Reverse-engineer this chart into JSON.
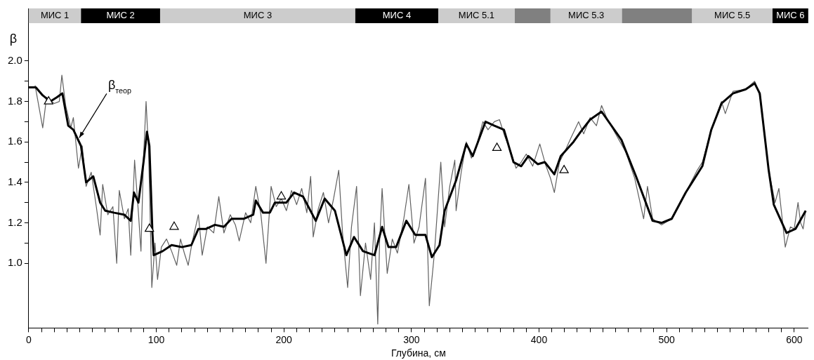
{
  "chart_data": {
    "type": "line",
    "xlabel": "Глубина, см",
    "ylabel": "β",
    "xlim": [
      0,
      611
    ],
    "ylim": [
      0.68,
      2.26
    ],
    "xticks": [
      0,
      {
        "value": 10,
        "label": null
      },
      {
        "value": 20,
        "label": null
      },
      {
        "value": 30,
        "label": null
      },
      {
        "value": 40,
        "label": null
      },
      {
        "value": 50,
        "label": null
      },
      {
        "value": 60,
        "label": null
      },
      {
        "value": 70,
        "label": null
      },
      {
        "value": 80,
        "label": null
      },
      {
        "value": 90,
        "label": null
      },
      100,
      {
        "value": 110,
        "label": null
      },
      {
        "value": 120,
        "label": null
      },
      {
        "value": 130,
        "label": null
      },
      {
        "value": 140,
        "label": null
      },
      {
        "value": 150,
        "label": null
      },
      {
        "value": 160,
        "label": null
      },
      {
        "value": 170,
        "label": null
      },
      {
        "value": 180,
        "label": null
      },
      {
        "value": 190,
        "label": null
      },
      200,
      {
        "value": 210,
        "label": null
      },
      {
        "value": 220,
        "label": null
      },
      {
        "value": 230,
        "label": null
      },
      {
        "value": 240,
        "label": null
      },
      {
        "value": 250,
        "label": null
      },
      {
        "value": 260,
        "label": null
      },
      {
        "value": 270,
        "label": null
      },
      {
        "value": 280,
        "label": null
      },
      {
        "value": 290,
        "label": null
      },
      300,
      {
        "value": 310,
        "label": null
      },
      {
        "value": 320,
        "label": null
      },
      {
        "value": 330,
        "label": null
      },
      {
        "value": 340,
        "label": null
      },
      {
        "value": 350,
        "label": null
      },
      {
        "value": 360,
        "label": null
      },
      {
        "value": 370,
        "label": null
      },
      {
        "value": 380,
        "label": null
      },
      {
        "value": 390,
        "label": null
      },
      400,
      {
        "value": 410,
        "label": null
      },
      {
        "value": 420,
        "label": null
      },
      {
        "value": 430,
        "label": null
      },
      {
        "value": 440,
        "label": null
      },
      {
        "value": 450,
        "label": null
      },
      {
        "value": 460,
        "label": null
      },
      {
        "value": 470,
        "label": null
      },
      {
        "value": 480,
        "label": null
      },
      {
        "value": 490,
        "label": null
      },
      500,
      {
        "value": 510,
        "label": null
      },
      {
        "value": 520,
        "label": null
      },
      {
        "value": 530,
        "label": null
      },
      {
        "value": 540,
        "label": null
      },
      {
        "value": 550,
        "label": null
      },
      {
        "value": 560,
        "label": null
      },
      {
        "value": 570,
        "label": null
      },
      {
        "value": 580,
        "label": null
      },
      {
        "value": 590,
        "label": null
      },
      600
    ],
    "yticks": [
      {
        "value": 1.0,
        "label": "1.0"
      },
      {
        "value": 1.1,
        "label": null
      },
      {
        "value": 1.2,
        "label": "1.2"
      },
      {
        "value": 1.3,
        "label": null
      },
      {
        "value": 1.4,
        "label": "1.4"
      },
      {
        "value": 1.5,
        "label": null
      },
      {
        "value": 1.6,
        "label": "1.6"
      },
      {
        "value": 1.7,
        "label": null
      },
      {
        "value": 1.8,
        "label": "1.8"
      },
      {
        "value": 1.9,
        "label": null
      },
      {
        "value": 2.0,
        "label": "2.0"
      }
    ],
    "grid": false,
    "legend": false,
    "line_style": "solid",
    "series": [
      {
        "type": "line",
        "color": "#606060",
        "marker": "none",
        "x": [
          5,
          11,
          14,
          20,
          24,
          26,
          29,
          33,
          35,
          39,
          42,
          45,
          49,
          53,
          56,
          58,
          62,
          66,
          69,
          71,
          75,
          78,
          80,
          83,
          86,
          88,
          90,
          92,
          94,
          96.5,
          99,
          101,
          104,
          108,
          112,
          116,
          119,
          122,
          125,
          128,
          133,
          136,
          140,
          145,
          149,
          153,
          158,
          162,
          165,
          170,
          174,
          178,
          182,
          186,
          190,
          194,
          198,
          202,
          206,
          210,
          214,
          218,
          221,
          223,
          227,
          231,
          235,
          239,
          243,
          246,
          250,
          253,
          257,
          260,
          264,
          268,
          271,
          273.6,
          275,
          277,
          281,
          285,
          289,
          294,
          298,
          302,
          306,
          311,
          314,
          318,
          323,
          326,
          330,
          334,
          335,
          339,
          343,
          347,
          351,
          356,
          360,
          365,
          369,
          373,
          378,
          382,
          386,
          390,
          395,
          400.6,
          405,
          409,
          412,
          416,
          420,
          425,
          431,
          435,
          440,
          445,
          449,
          453,
          460,
          468,
          475,
          482,
          485,
          489,
          496,
          504,
          515,
          524,
          528,
          535,
          543,
          546,
          552,
          562,
          569,
          573,
          580,
          585,
          588,
          593,
          597,
          600,
          603,
          605,
          607,
          609
        ],
        "values": [
          1.88,
          1.67,
          1.82,
          1.79,
          1.8,
          1.93,
          1.78,
          1.67,
          1.72,
          1.47,
          1.58,
          1.38,
          1.45,
          1.28,
          1.14,
          1.39,
          1.24,
          1.28,
          1.0,
          1.36,
          1.22,
          1.27,
          1.04,
          1.51,
          1.25,
          1.06,
          1.52,
          1.8,
          1.55,
          0.88,
          1.1,
          0.92,
          1.08,
          1.12,
          1.06,
          0.99,
          1.12,
          1.05,
          0.99,
          1.1,
          1.24,
          1.04,
          1.18,
          1.15,
          1.33,
          1.15,
          1.24,
          1.19,
          1.11,
          1.25,
          1.2,
          1.38,
          1.24,
          1.0,
          1.38,
          1.28,
          1.32,
          1.26,
          1.36,
          1.29,
          1.37,
          1.25,
          1.43,
          1.13,
          1.27,
          1.35,
          1.2,
          1.32,
          1.46,
          1.15,
          0.88,
          1.18,
          1.38,
          0.84,
          1.1,
          0.92,
          1.2,
          0.7,
          1.1,
          1.37,
          0.95,
          1.12,
          1.05,
          1.22,
          1.39,
          1.1,
          1.18,
          1.42,
          0.79,
          1.05,
          1.5,
          1.18,
          1.38,
          1.51,
          1.26,
          1.45,
          1.6,
          1.52,
          1.58,
          1.7,
          1.66,
          1.7,
          1.71,
          1.63,
          1.55,
          1.47,
          1.5,
          1.54,
          1.48,
          1.59,
          1.49,
          1.42,
          1.35,
          1.5,
          1.55,
          1.62,
          1.7,
          1.64,
          1.72,
          1.68,
          1.78,
          1.72,
          1.64,
          1.55,
          1.42,
          1.22,
          1.38,
          1.22,
          1.19,
          1.22,
          1.35,
          1.46,
          1.5,
          1.66,
          1.8,
          1.74,
          1.85,
          1.86,
          1.9,
          1.83,
          1.46,
          1.3,
          1.37,
          1.08,
          1.18,
          1.17,
          1.3,
          1.2,
          1.17,
          1.26
        ]
      },
      {
        "type": "line",
        "color": "#000000",
        "marker": "none",
        "x": [
          0,
          5.6,
          11,
          17,
          22,
          26.4,
          31,
          35,
          41,
          45,
          50.6,
          56,
          60,
          67,
          75,
          80,
          82.5,
          86,
          90,
          92.7,
          94.6,
          97,
          98,
          105,
          112,
          120,
          127.5,
          133,
          139,
          146,
          153,
          159,
          168.5,
          176,
          178,
          183.7,
          189,
          193,
          202,
          208,
          215,
          225,
          232,
          240,
          249,
          255,
          262,
          271,
          277,
          282,
          288,
          296,
          303,
          311,
          316,
          322,
          326,
          335,
          343,
          348,
          358,
          365,
          372.5,
          380,
          386,
          391.6,
          399,
          404.5,
          412,
          417,
          427,
          432.6,
          440,
          449,
          464.6,
          476,
          489,
          496,
          504,
          515,
          528,
          535,
          543,
          552,
          562,
          569,
          573,
          580,
          584,
          594,
          601,
          609
        ],
        "values": [
          1.87,
          1.87,
          1.83,
          1.8,
          1.82,
          1.84,
          1.68,
          1.66,
          1.58,
          1.4,
          1.43,
          1.3,
          1.26,
          1.25,
          1.24,
          1.21,
          1.35,
          1.3,
          1.5,
          1.65,
          1.58,
          1.15,
          1.04,
          1.06,
          1.09,
          1.08,
          1.09,
          1.17,
          1.17,
          1.19,
          1.18,
          1.22,
          1.22,
          1.24,
          1.31,
          1.25,
          1.25,
          1.3,
          1.3,
          1.35,
          1.33,
          1.21,
          1.32,
          1.26,
          1.04,
          1.13,
          1.06,
          1.04,
          1.18,
          1.08,
          1.08,
          1.21,
          1.14,
          1.14,
          1.03,
          1.09,
          1.26,
          1.41,
          1.59,
          1.53,
          1.7,
          1.68,
          1.66,
          1.5,
          1.48,
          1.53,
          1.49,
          1.5,
          1.44,
          1.53,
          1.6,
          1.65,
          1.71,
          1.75,
          1.61,
          1.43,
          1.21,
          1.2,
          1.22,
          1.35,
          1.48,
          1.66,
          1.79,
          1.84,
          1.86,
          1.89,
          1.84,
          1.46,
          1.29,
          1.15,
          1.17,
          1.26
        ]
      },
      {
        "type": "scatter",
        "color": "#000000",
        "marker": "triangle",
        "x": [
          15.6,
          94.6,
          114,
          198,
          367,
          419.6
        ],
        "values": [
          1.8,
          1.17,
          1.18,
          1.33,
          1.57,
          1.46
        ]
      }
    ],
    "bands": [
      {
        "axis": "x",
        "from": 0,
        "to": 41,
        "label": "МИС 1",
        "color": "#cccccc"
      },
      {
        "axis": "x",
        "from": 41,
        "to": 103,
        "label": "МИС 2",
        "color": "#000000"
      },
      {
        "axis": "x",
        "from": 103,
        "to": 256,
        "label": "МИС 3",
        "color": "#cccccc"
      },
      {
        "axis": "x",
        "from": 256,
        "to": 321,
        "label": "МИС 4",
        "color": "#000000"
      },
      {
        "axis": "x",
        "from": 321,
        "to": 381,
        "label": "МИС 5.1",
        "color": "#cccccc"
      },
      {
        "axis": "x",
        "from": 381,
        "to": 409,
        "label": null,
        "color": "#808080"
      },
      {
        "axis": "x",
        "from": 409,
        "to": 465,
        "label": "МИС 5.3",
        "color": "#cccccc"
      },
      {
        "axis": "x",
        "from": 465,
        "to": 520,
        "label": null,
        "color": "#808080"
      },
      {
        "axis": "x",
        "from": 520,
        "to": 583,
        "label": "МИС 5.5",
        "color": "#cccccc"
      },
      {
        "axis": "x",
        "from": 583,
        "to": 611,
        "label": "МИС 6",
        "color": "#000000"
      }
    ],
    "annotations": [
      {
        "text": "β$_{теор}$",
        "x": 38,
        "y": 1.61
      }
    ]
  }
}
